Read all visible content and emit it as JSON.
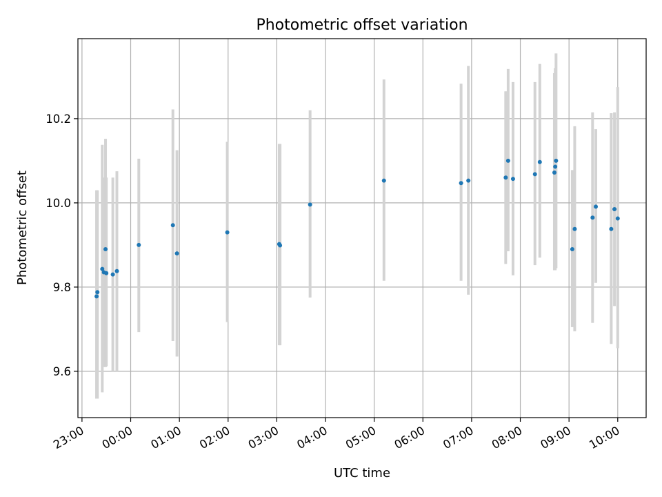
{
  "chart_data": {
    "type": "scatter",
    "title": "Photometric offset variation",
    "xlabel": "UTC time",
    "ylabel": "Photometric offset",
    "x_axis": {
      "kind": "time",
      "range": [
        "22:55",
        "10:35"
      ],
      "ticks": [
        "23:00",
        "00:00",
        "01:00",
        "02:00",
        "03:00",
        "04:00",
        "05:00",
        "06:00",
        "07:00",
        "08:00",
        "09:00",
        "10:00"
      ]
    },
    "y_axis": {
      "range": [
        9.49,
        10.39
      ],
      "ticks": [
        "9.6",
        "9.8",
        "10.0",
        "10.2"
      ]
    },
    "grid": true,
    "colors": {
      "points": "#1f77b4",
      "error_bars": "#d3d3d3"
    },
    "points": [
      {
        "x": "23:18",
        "y": 9.778,
        "lo": 9.535,
        "hi": 10.03
      },
      {
        "x": "23:19",
        "y": 9.788,
        "lo": 9.535,
        "hi": 10.03
      },
      {
        "x": "23:25",
        "y": 9.843,
        "lo": 9.55,
        "hi": 10.138
      },
      {
        "x": "23:27",
        "y": 9.835,
        "lo": 9.61,
        "hi": 10.06
      },
      {
        "x": "23:29",
        "y": 9.89,
        "lo": 9.61,
        "hi": 10.152
      },
      {
        "x": "23:30",
        "y": 9.833,
        "lo": 9.612,
        "hi": 10.06
      },
      {
        "x": "23:38",
        "y": 9.83,
        "lo": 9.6,
        "hi": 10.06
      },
      {
        "x": "23:43",
        "y": 9.838,
        "lo": 9.6,
        "hi": 10.075
      },
      {
        "x": "00:10",
        "y": 9.9,
        "lo": 9.693,
        "hi": 10.105
      },
      {
        "x": "00:52",
        "y": 9.947,
        "lo": 9.672,
        "hi": 10.222
      },
      {
        "x": "00:57",
        "y": 9.88,
        "lo": 9.635,
        "hi": 10.125
      },
      {
        "x": "01:59",
        "y": 9.93,
        "lo": 9.717,
        "hi": 10.145
      },
      {
        "x": "03:03",
        "y": 9.902,
        "lo": 9.662,
        "hi": 10.14
      },
      {
        "x": "03:04",
        "y": 9.899,
        "lo": 9.662,
        "hi": 10.14
      },
      {
        "x": "03:41",
        "y": 9.996,
        "lo": 9.775,
        "hi": 10.22
      },
      {
        "x": "05:12",
        "y": 10.053,
        "lo": 9.815,
        "hi": 10.293
      },
      {
        "x": "06:47",
        "y": 10.047,
        "lo": 9.815,
        "hi": 10.283
      },
      {
        "x": "06:56",
        "y": 10.053,
        "lo": 9.782,
        "hi": 10.325
      },
      {
        "x": "07:42",
        "y": 10.06,
        "lo": 9.855,
        "hi": 10.265
      },
      {
        "x": "07:45",
        "y": 10.1,
        "lo": 9.885,
        "hi": 10.318
      },
      {
        "x": "07:51",
        "y": 10.057,
        "lo": 9.828,
        "hi": 10.287
      },
      {
        "x": "08:18",
        "y": 10.068,
        "lo": 9.852,
        "hi": 10.287
      },
      {
        "x": "08:24",
        "y": 10.097,
        "lo": 9.87,
        "hi": 10.33
      },
      {
        "x": "08:42",
        "y": 10.072,
        "lo": 9.84,
        "hi": 10.308
      },
      {
        "x": "08:43",
        "y": 10.086,
        "lo": 9.84,
        "hi": 10.32
      },
      {
        "x": "08:44",
        "y": 10.1,
        "lo": 9.845,
        "hi": 10.355
      },
      {
        "x": "09:04",
        "y": 9.89,
        "lo": 9.705,
        "hi": 10.078
      },
      {
        "x": "09:07",
        "y": 9.938,
        "lo": 9.695,
        "hi": 10.182
      },
      {
        "x": "09:29",
        "y": 9.965,
        "lo": 9.715,
        "hi": 10.215
      },
      {
        "x": "09:33",
        "y": 9.991,
        "lo": 9.81,
        "hi": 10.175
      },
      {
        "x": "09:52",
        "y": 9.938,
        "lo": 9.665,
        "hi": 10.213
      },
      {
        "x": "09:56",
        "y": 9.985,
        "lo": 9.755,
        "hi": 10.215
      },
      {
        "x": "10:00",
        "y": 9.963,
        "lo": 9.655,
        "hi": 10.275
      }
    ]
  }
}
